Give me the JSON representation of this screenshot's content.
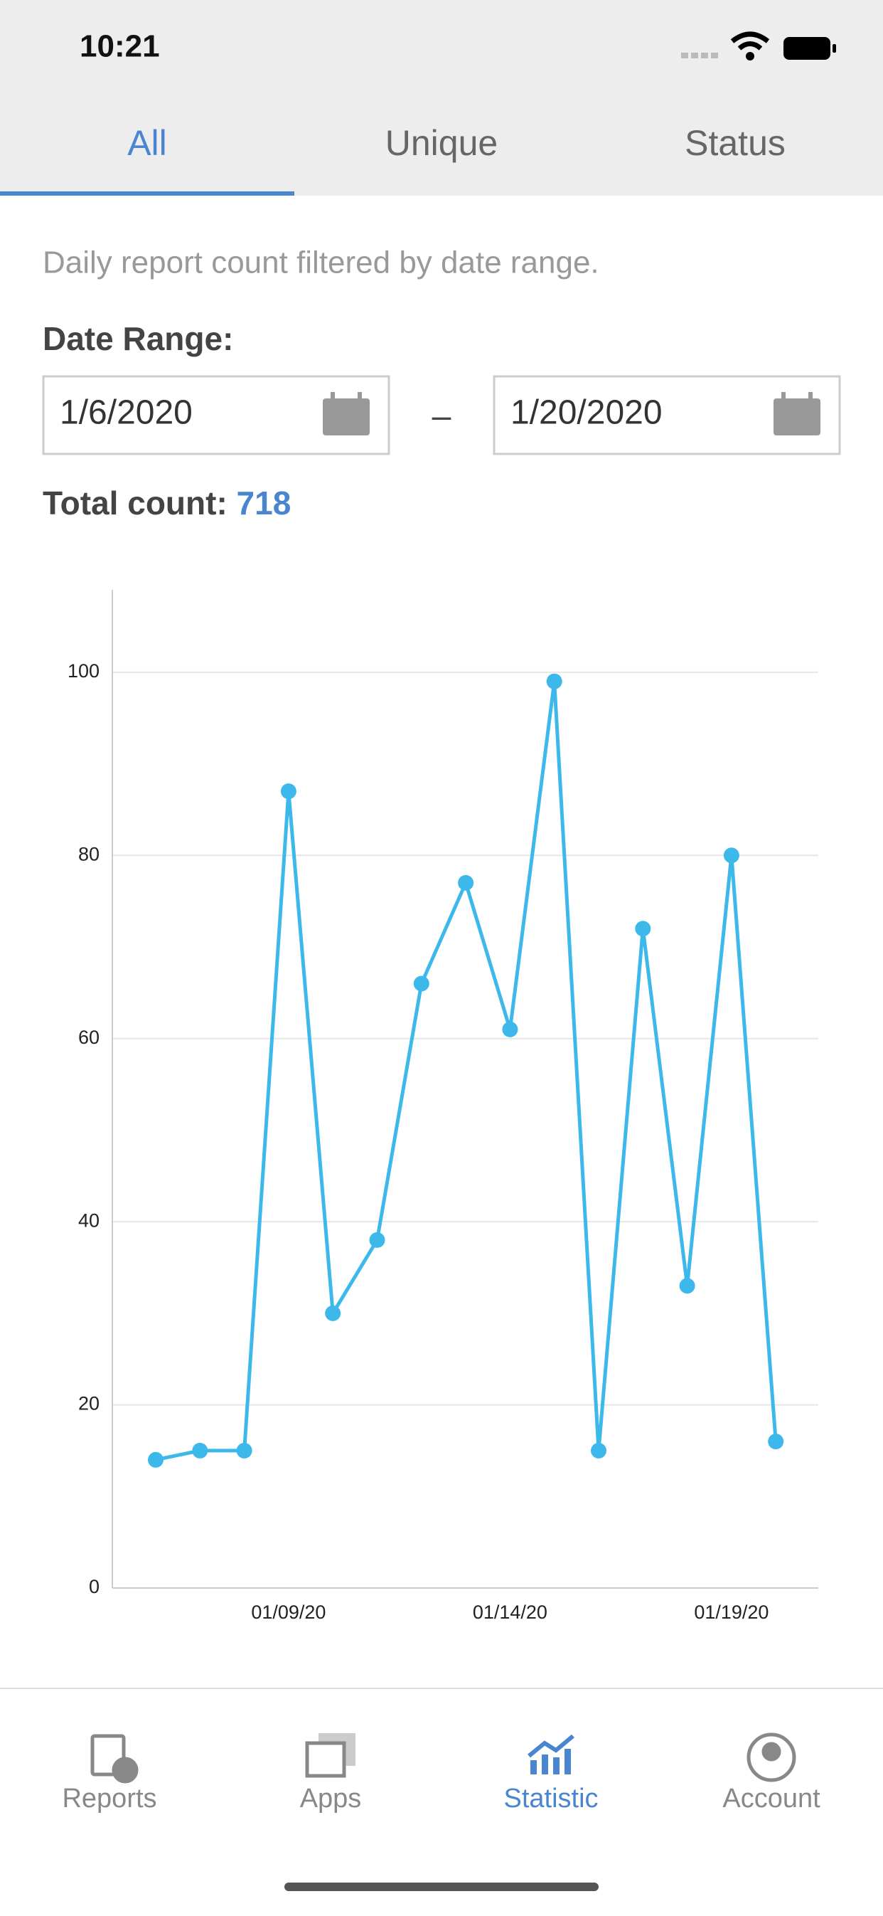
{
  "status_bar": {
    "time": "10:21"
  },
  "tabs": [
    "All",
    "Unique",
    "Status"
  ],
  "description": "Daily report count filtered by date range.",
  "date_range": {
    "label": "Date Range:",
    "start": "1/6/2020",
    "separator": "–",
    "end": "1/20/2020"
  },
  "total": {
    "label": "Total count:",
    "value": "718"
  },
  "chart_data": {
    "type": "line",
    "categories": [
      null,
      null,
      null,
      "01/09/20",
      null,
      null,
      null,
      null,
      "01/14/20",
      null,
      null,
      null,
      null,
      "01/19/20",
      null
    ],
    "series": [
      {
        "color": "#3db8ea",
        "values": [
          14,
          15,
          15,
          87,
          30,
          38,
          66,
          77,
          61,
          99,
          15,
          72,
          33,
          80,
          16
        ]
      }
    ],
    "ylim": [
      0,
      109
    ],
    "yticks": [
      0,
      20,
      40,
      60,
      80,
      100
    ],
    "grid": true
  },
  "nav": [
    "Reports",
    "Apps",
    "Statistic",
    "Account"
  ]
}
